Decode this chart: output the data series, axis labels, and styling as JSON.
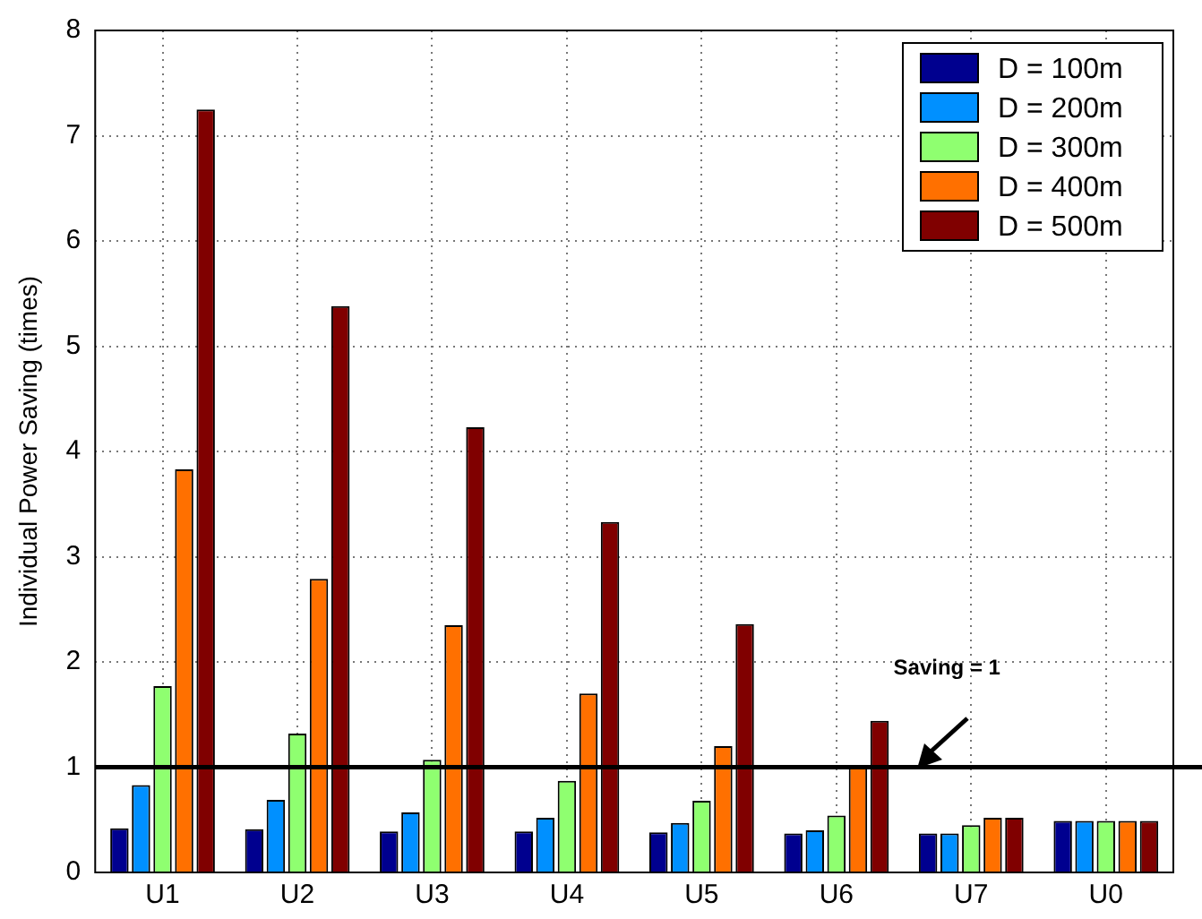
{
  "chart_data": {
    "type": "bar",
    "ylabel": "Individual Power Saving (times)",
    "categories": [
      "U1",
      "U2",
      "U3",
      "U4",
      "U5",
      "U6",
      "U7",
      "U0"
    ],
    "series": [
      {
        "name": "D = 100m",
        "color": "#00008f",
        "values": [
          0.42,
          0.41,
          0.39,
          0.39,
          0.38,
          0.37,
          0.37,
          0.49
        ]
      },
      {
        "name": "D = 200m",
        "color": "#0090ff",
        "values": [
          0.83,
          0.69,
          0.57,
          0.52,
          0.47,
          0.4,
          0.37,
          0.49
        ]
      },
      {
        "name": "D = 300m",
        "color": "#8fff70",
        "values": [
          1.77,
          1.32,
          1.07,
          0.87,
          0.68,
          0.54,
          0.45,
          0.49
        ]
      },
      {
        "name": "D = 400m",
        "color": "#ff7000",
        "values": [
          3.83,
          2.79,
          2.35,
          1.7,
          1.2,
          1.0,
          0.52,
          0.49
        ]
      },
      {
        "name": "D = 500m",
        "color": "#800000",
        "values": [
          7.25,
          5.38,
          4.23,
          3.33,
          2.36,
          1.44,
          0.52,
          0.49
        ]
      }
    ],
    "ylim": [
      0,
      8
    ],
    "yticks": [
      0,
      1,
      2,
      3,
      4,
      5,
      6,
      7,
      8
    ],
    "grid": true,
    "legend": "top right",
    "ref_lines": [
      {
        "axis": "y",
        "value": 1,
        "color": "#000000"
      }
    ],
    "annotations": [
      "Saving = 1"
    ]
  }
}
